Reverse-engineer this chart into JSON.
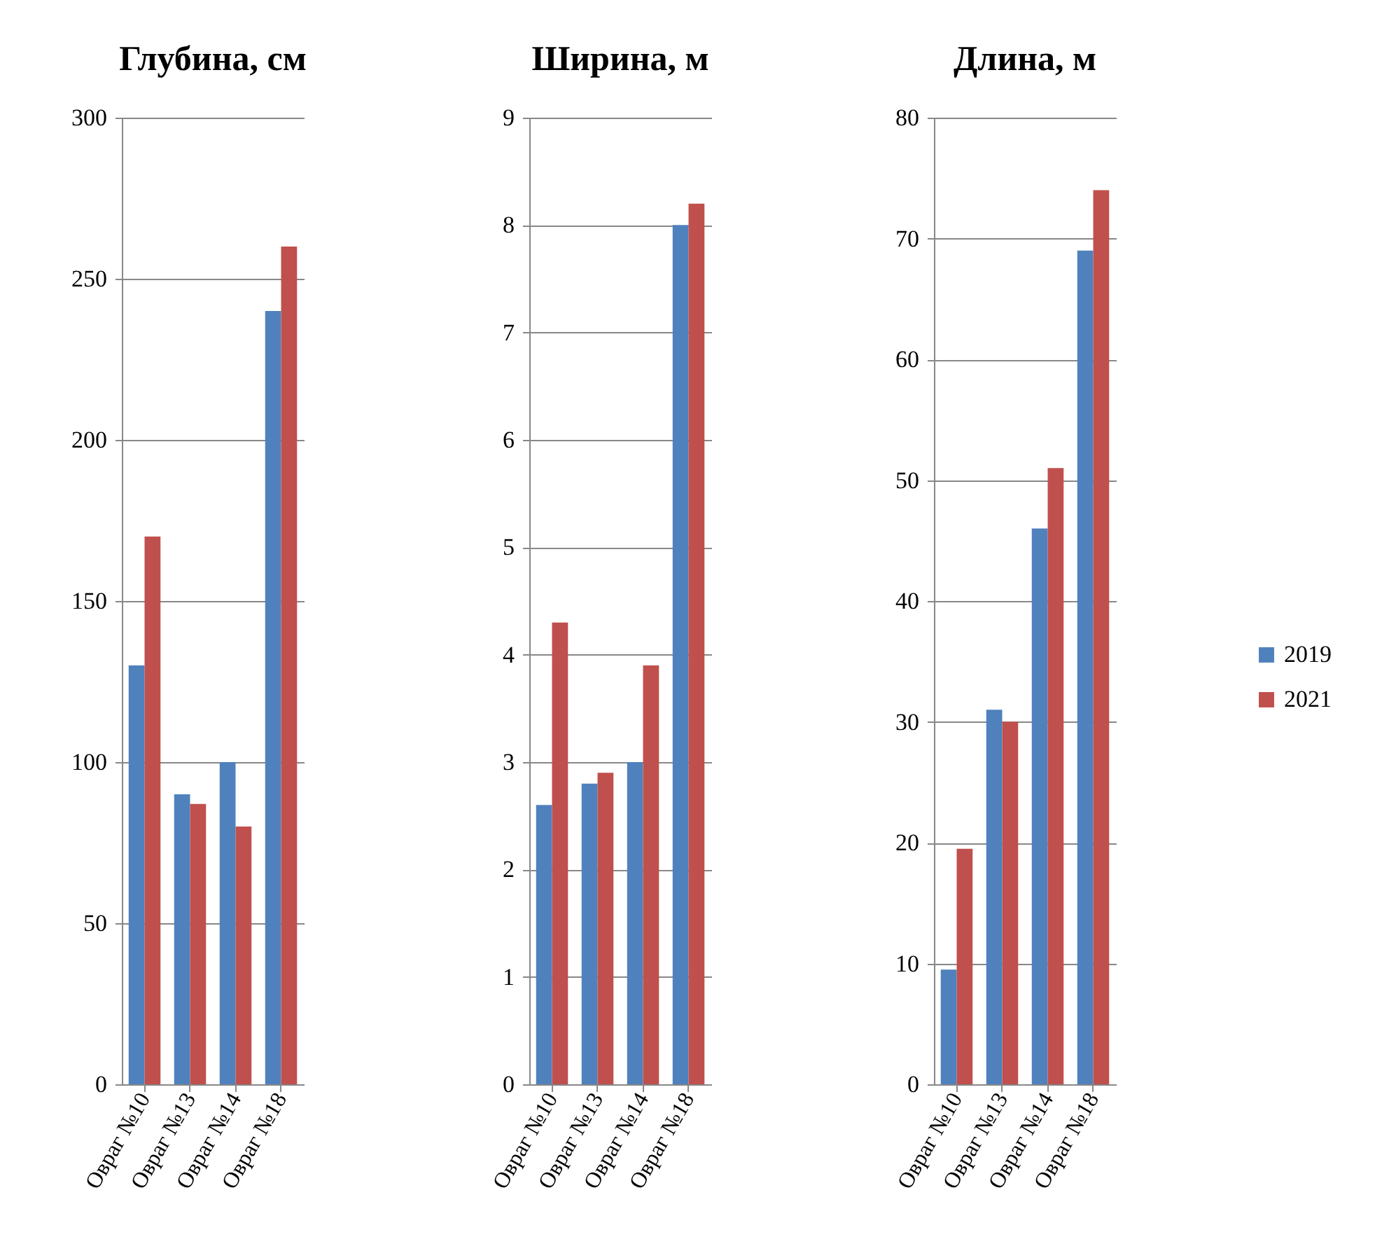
{
  "chart_data": [
    {
      "type": "bar",
      "title": "Глубина, см",
      "categories": [
        "Овраг №10",
        "Овраг №13",
        "Овраг №14",
        "Овраг №18"
      ],
      "series": [
        {
          "name": "2019",
          "color": "#4f81bd",
          "values": [
            130,
            90,
            100,
            240
          ]
        },
        {
          "name": "2021",
          "color": "#c0504d",
          "values": [
            170,
            87,
            80,
            260
          ]
        }
      ],
      "ylim": [
        0,
        300
      ],
      "yticks": [
        0,
        50,
        100,
        150,
        200,
        250,
        300
      ],
      "grid": "y",
      "legend": "right"
    },
    {
      "type": "bar",
      "title": "Ширина, м",
      "categories": [
        "Овраг №10",
        "Овраг №13",
        "Овраг №14",
        "Овраг №18"
      ],
      "series": [
        {
          "name": "2019",
          "color": "#4f81bd",
          "values": [
            2.6,
            2.8,
            3.0,
            8.0
          ]
        },
        {
          "name": "2021",
          "color": "#c0504d",
          "values": [
            4.3,
            2.9,
            3.9,
            8.2
          ]
        }
      ],
      "ylim": [
        0,
        9
      ],
      "yticks": [
        0,
        1,
        2,
        3,
        4,
        5,
        6,
        7,
        8,
        9
      ],
      "grid": "y",
      "legend": "right"
    },
    {
      "type": "bar",
      "title": "Длина, м",
      "categories": [
        "Овраг №10",
        "Овраг №13",
        "Овраг №14",
        "Овраг №18"
      ],
      "series": [
        {
          "name": "2019",
          "color": "#4f81bd",
          "values": [
            9.5,
            31,
            46,
            69
          ]
        },
        {
          "name": "2021",
          "color": "#c0504d",
          "values": [
            19.5,
            30,
            51,
            74
          ]
        }
      ],
      "ylim": [
        0,
        80
      ],
      "yticks": [
        0,
        10,
        20,
        30,
        40,
        50,
        60,
        70,
        80
      ],
      "grid": "y",
      "legend": "right"
    }
  ]
}
